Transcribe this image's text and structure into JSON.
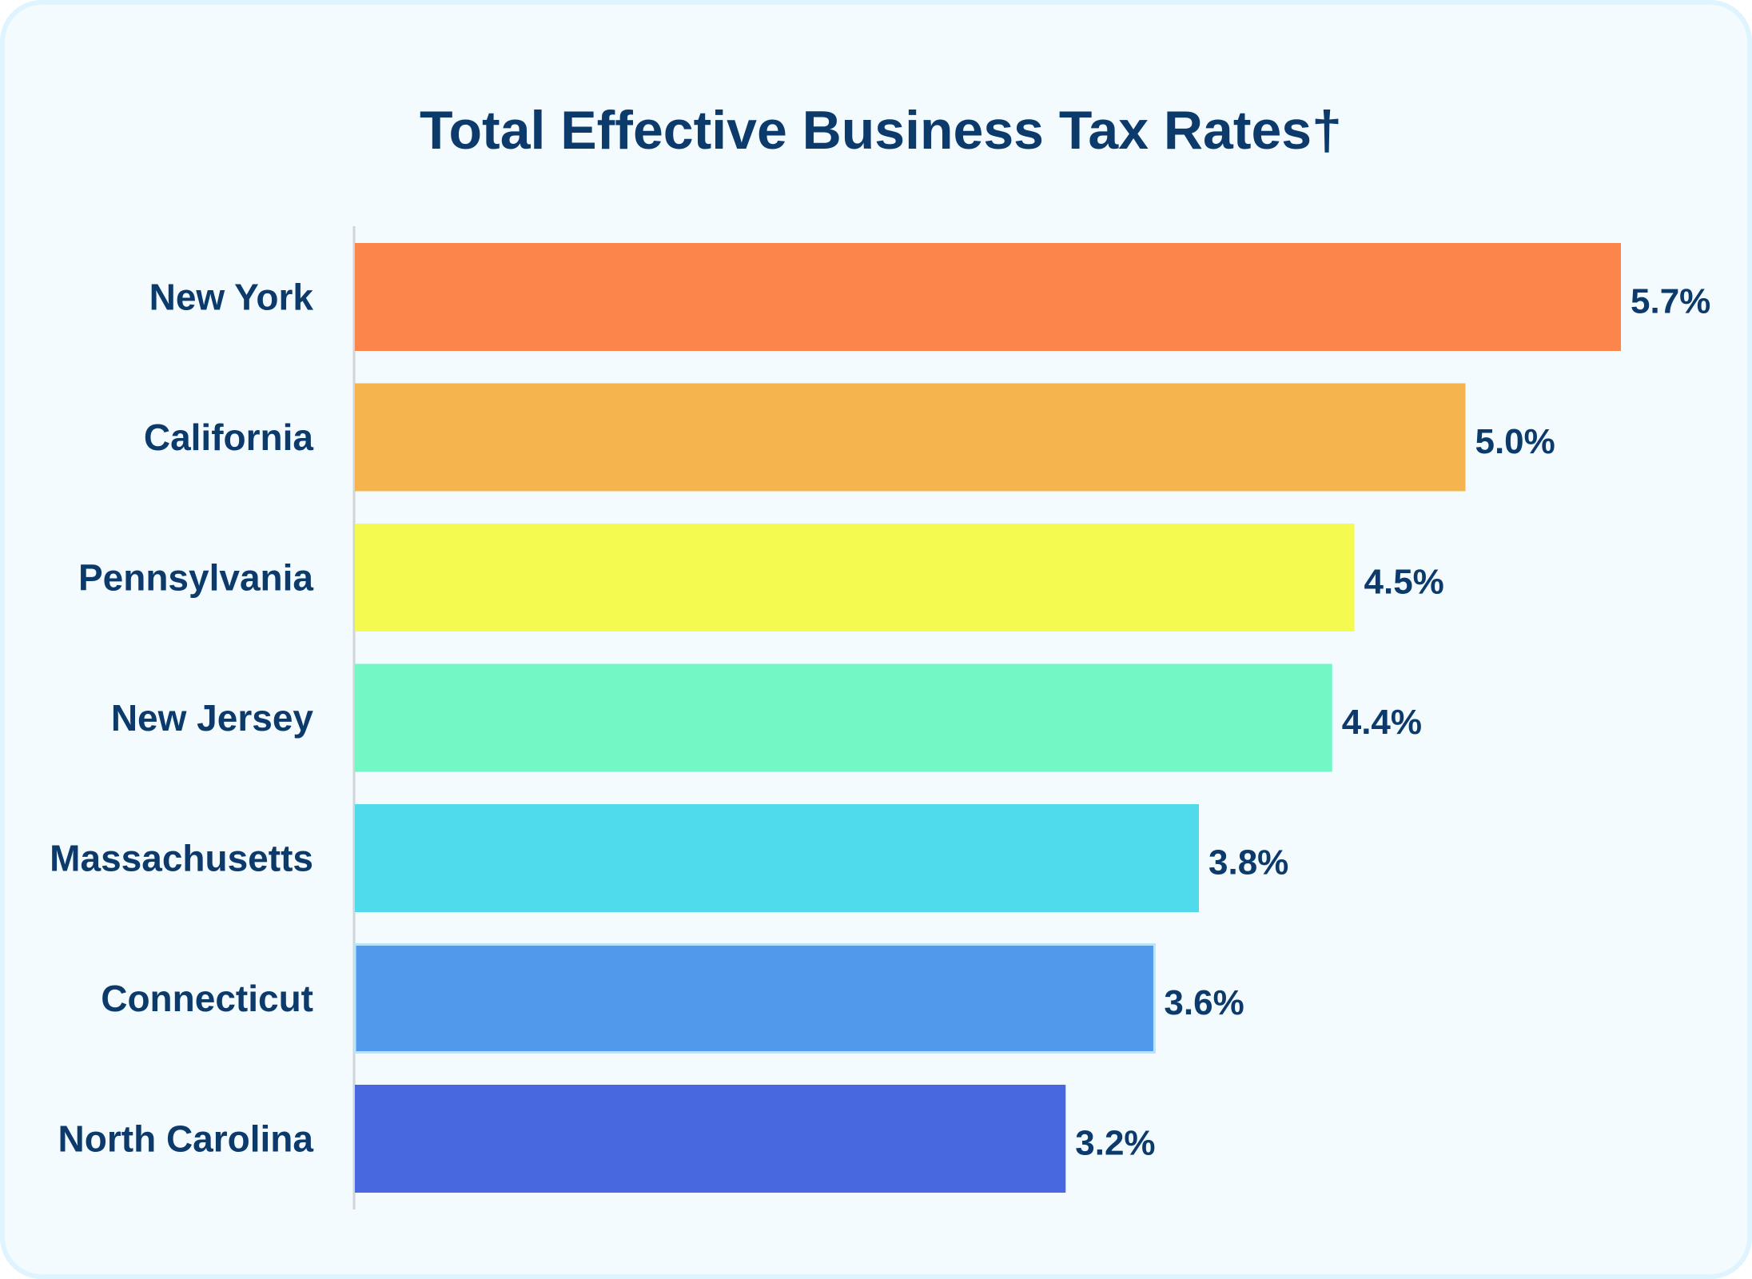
{
  "chart_data": {
    "type": "bar",
    "orientation": "horizontal",
    "title": "Total Effective Business Tax Rates†",
    "xlabel": "",
    "ylabel": "",
    "xlim": [
      0,
      5.7
    ],
    "grid": false,
    "categories": [
      "New York",
      "California",
      "Pennsylvania",
      "New Jersey",
      "Massachusetts",
      "Connecticut",
      "North Carolina"
    ],
    "values": [
      5.7,
      5.0,
      4.5,
      4.4,
      3.8,
      3.6,
      3.2
    ],
    "value_labels": [
      "5.7%",
      "5.0%",
      "4.5%",
      "4.4%",
      "3.8%",
      "3.6%",
      "3.2%"
    ],
    "colors": [
      "#fb854b",
      "#f5b44d",
      "#f5fa51",
      "#72f7c5",
      "#50dbec",
      "#5199eb",
      "#4868e0"
    ],
    "highlighted_index": 5,
    "highlight_outline_color": "#b7e4fb"
  }
}
